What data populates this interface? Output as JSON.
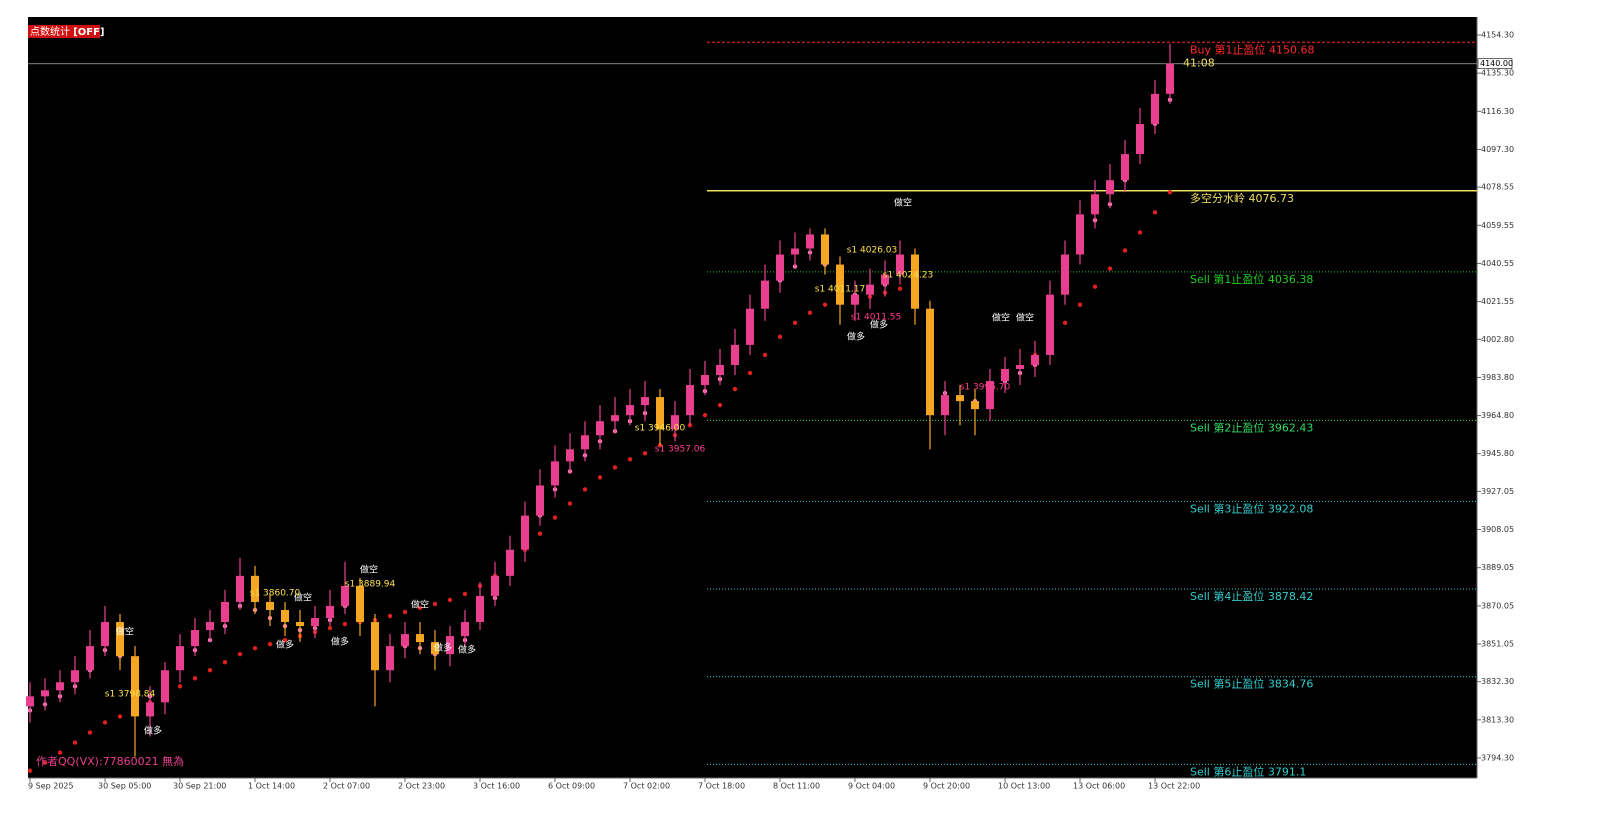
{
  "chart_data": {
    "type": "candlestick",
    "status_label": "点数统计",
    "status_state": "[OFF]",
    "author_note": "作者QQ(VX):77860021 無為",
    "up_color": "#e8408f",
    "down_color": "#f5a623",
    "categories": [
      "9 Sep 2025",
      null,
      null,
      null,
      null,
      "30 Sep 05:00",
      null,
      null,
      null,
      null,
      "30 Sep 21:00",
      null,
      null,
      null,
      null,
      "1 Oct 14:00",
      null,
      null,
      null,
      null,
      "2 Oct 07:00",
      null,
      null,
      null,
      null,
      "2 Oct 23:00",
      null,
      null,
      null,
      null,
      "3 Oct 16:00",
      null,
      null,
      null,
      null,
      "6 Oct 09:00",
      null,
      null,
      null,
      null,
      "7 Oct 02:00",
      null,
      null,
      null,
      null,
      "7 Oct 18:00",
      null,
      null,
      null,
      null,
      "8 Oct 11:00",
      null,
      null,
      null,
      null,
      "9 Oct 04:00",
      null,
      null,
      null,
      null,
      "9 Oct 20:00",
      null,
      null,
      null,
      null,
      "10 Oct 13:00",
      null,
      null,
      null,
      null,
      "13 Oct 06:00",
      null,
      null,
      null,
      null,
      "13 Oct 22:00",
      null
    ],
    "ohlc": [
      [
        3820,
        3832,
        3812,
        3825
      ],
      [
        3825,
        3834,
        3818,
        3828
      ],
      [
        3828,
        3838,
        3822,
        3832
      ],
      [
        3832,
        3845,
        3826,
        3838
      ],
      [
        3838,
        3858,
        3834,
        3850
      ],
      [
        3850,
        3870,
        3845,
        3862
      ],
      [
        3862,
        3866,
        3838,
        3845
      ],
      [
        3845,
        3850,
        3795,
        3815
      ],
      [
        3815,
        3830,
        3805,
        3822
      ],
      [
        3822,
        3842,
        3816,
        3838
      ],
      [
        3838,
        3856,
        3832,
        3850
      ],
      [
        3850,
        3864,
        3845,
        3858
      ],
      [
        3858,
        3868,
        3852,
        3862
      ],
      [
        3862,
        3878,
        3856,
        3872
      ],
      [
        3872,
        3894,
        3868,
        3885
      ],
      [
        3885,
        3890,
        3866,
        3872
      ],
      [
        3872,
        3876,
        3860,
        3868
      ],
      [
        3868,
        3872,
        3855,
        3862
      ],
      [
        3862,
        3868,
        3852,
        3860
      ],
      [
        3860,
        3870,
        3854,
        3864
      ],
      [
        3864,
        3878,
        3860,
        3870
      ],
      [
        3870,
        3892,
        3866,
        3880
      ],
      [
        3880,
        3884,
        3855,
        3862
      ],
      [
        3862,
        3866,
        3820,
        3838
      ],
      [
        3838,
        3856,
        3832,
        3850
      ],
      [
        3850,
        3862,
        3844,
        3856
      ],
      [
        3856,
        3862,
        3846,
        3852
      ],
      [
        3852,
        3858,
        3838,
        3846
      ],
      [
        3846,
        3860,
        3840,
        3855
      ],
      [
        3855,
        3868,
        3850,
        3862
      ],
      [
        3862,
        3882,
        3858,
        3875
      ],
      [
        3875,
        3892,
        3870,
        3885
      ],
      [
        3885,
        3905,
        3880,
        3898
      ],
      [
        3898,
        3922,
        3892,
        3915
      ],
      [
        3915,
        3938,
        3910,
        3930
      ],
      [
        3930,
        3950,
        3924,
        3942
      ],
      [
        3942,
        3956,
        3936,
        3948
      ],
      [
        3948,
        3962,
        3942,
        3955
      ],
      [
        3955,
        3970,
        3948,
        3962
      ],
      [
        3962,
        3974,
        3956,
        3965
      ],
      [
        3965,
        3978,
        3960,
        3970
      ],
      [
        3970,
        3982,
        3962,
        3974
      ],
      [
        3974,
        3978,
        3950,
        3958
      ],
      [
        3958,
        3972,
        3952,
        3965
      ],
      [
        3965,
        3988,
        3960,
        3980
      ],
      [
        3980,
        3992,
        3975,
        3985
      ],
      [
        3985,
        3998,
        3980,
        3990
      ],
      [
        3990,
        4008,
        3985,
        4000
      ],
      [
        4000,
        4025,
        3995,
        4018
      ],
      [
        4018,
        4040,
        4012,
        4032
      ],
      [
        4032,
        4052,
        4026,
        4045
      ],
      [
        4045,
        4056,
        4038,
        4048
      ],
      [
        4048,
        4058,
        4042,
        4055
      ],
      [
        4055,
        4058,
        4035,
        4040
      ],
      [
        4040,
        4044,
        4010,
        4020
      ],
      [
        4020,
        4032,
        4012,
        4025
      ],
      [
        4025,
        4038,
        4018,
        4030
      ],
      [
        4030,
        4042,
        4024,
        4035
      ],
      [
        4035,
        4052,
        4030,
        4045
      ],
      [
        4045,
        4048,
        4010,
        4018
      ],
      [
        4018,
        4022,
        3948,
        3965
      ],
      [
        3965,
        3982,
        3955,
        3975
      ],
      [
        3975,
        3980,
        3960,
        3972
      ],
      [
        3972,
        3978,
        3955,
        3968
      ],
      [
        3968,
        3988,
        3962,
        3982
      ],
      [
        3982,
        3994,
        3976,
        3988
      ],
      [
        3988,
        3998,
        3980,
        3990
      ],
      [
        3990,
        4002,
        3984,
        3995
      ],
      [
        3995,
        4032,
        3990,
        4025
      ],
      [
        4025,
        4052,
        4020,
        4045
      ],
      [
        4045,
        4072,
        4040,
        4065
      ],
      [
        4065,
        4082,
        4058,
        4075
      ],
      [
        4075,
        4090,
        4068,
        4082
      ],
      [
        4082,
        4102,
        4076,
        4095
      ],
      [
        4095,
        4118,
        4090,
        4110
      ],
      [
        4110,
        4132,
        4105,
        4125
      ],
      [
        4125,
        4150,
        4120,
        4140
      ]
    ],
    "dot_lines": [
      {
        "color": "#ff7fb8",
        "values": [
          3818,
          3821,
          3825,
          3830,
          3838,
          3848,
          3845,
          3830,
          3825,
          3830,
          3840,
          3848,
          3853,
          3860,
          3870,
          3868,
          3864,
          3860,
          3858,
          3859,
          3863,
          3870,
          3865,
          3850,
          3848,
          3850,
          3849,
          3846,
          3848,
          3853,
          3863,
          3874,
          3886,
          3900,
          3915,
          3928,
          3937,
          3945,
          3952,
          3957,
          3962,
          3966,
          3960,
          3960,
          3970,
          3977,
          3983,
          3991,
          4005,
          4020,
          4032,
          4039,
          4046,
          4040,
          4028,
          4025,
          4027,
          4030,
          4036,
          4020,
          3985,
          3976,
          3974,
          3972,
          3976,
          3982,
          3986,
          3990,
          4010,
          4030,
          4050,
          4062,
          4070,
          4082,
          4096,
          4110,
          4122
        ]
      },
      {
        "color": "#e0201c",
        "values": [
          3788,
          3792,
          3797,
          3802,
          3807,
          3812,
          3815,
          3818,
          3822,
          3826,
          3830,
          3834,
          3838,
          3842,
          3846,
          3849,
          3851,
          3853,
          3855,
          3857,
          3859,
          3861,
          3862,
          3863,
          3865,
          3867,
          3869,
          3871,
          3873,
          3876,
          3880,
          3885,
          3891,
          3898,
          3906,
          3914,
          3921,
          3928,
          3934,
          3939,
          3943,
          3946,
          3950,
          3955,
          3960,
          3965,
          3970,
          3978,
          3986,
          3995,
          4004,
          4011,
          4016,
          4020,
          4022,
          4023,
          4024,
          4026,
          4028,
          4029,
          null,
          null,
          null,
          null,
          null,
          null,
          null,
          3995,
          4003,
          4011,
          4020,
          4029,
          4038,
          4047,
          4056,
          4066,
          4076
        ]
      }
    ],
    "ylim": [
      3784.34,
      4163.26
    ],
    "yticks": [
      {
        "value": 4154.3,
        "label": "4154.30"
      },
      {
        "value": 4135.3,
        "label": "4135.30"
      },
      {
        "value": 4116.3,
        "label": "4116.30"
      },
      {
        "value": 4097.3,
        "label": "4097.30"
      },
      {
        "value": 4078.55,
        "label": "4078.55"
      },
      {
        "value": 4059.55,
        "label": "4059.55"
      },
      {
        "value": 4040.55,
        "label": "4040.55"
      },
      {
        "value": 4021.55,
        "label": "4021.55"
      },
      {
        "value": 4002.8,
        "label": "4002.80"
      },
      {
        "value": 3983.8,
        "label": "3983.80"
      },
      {
        "value": 3964.8,
        "label": "3964.80"
      },
      {
        "value": 3945.8,
        "label": "3945.80"
      },
      {
        "value": 3927.05,
        "label": "3927.05"
      },
      {
        "value": 3908.05,
        "label": "3908.05"
      },
      {
        "value": 3889.05,
        "label": "3889.05"
      },
      {
        "value": 3870.05,
        "label": "3870.05"
      },
      {
        "value": 3851.05,
        "label": "3851.05"
      },
      {
        "value": 3832.3,
        "label": "3832.30"
      },
      {
        "value": 3813.3,
        "label": "3813.30"
      },
      {
        "value": 3794.3,
        "label": "3794.30"
      }
    ],
    "price_line": {
      "value": 4140,
      "label": "4140.00",
      "countdown": "41:08"
    },
    "levels": [
      {
        "name": "Buy 第1止盈位",
        "value": 4150.68,
        "color": "#ff2a2a",
        "dash": "dashed"
      },
      {
        "name": "多空分水岭",
        "value": 4076.73,
        "color": "#f0e060",
        "dash": "solid"
      },
      {
        "name": "Sell 第1止盈位",
        "value": 4036.38,
        "color": "#22cc22",
        "dash": "dotted"
      },
      {
        "name": "Sell 第2止盈位",
        "value": 3962.43,
        "color": "#33dd66",
        "dash": "dotted"
      },
      {
        "name": "Sell 第3止盈位",
        "value": 3922.08,
        "color": "#33cccc",
        "dash": "dotted"
      },
      {
        "name": "Sell 第4止盈位",
        "value": 3878.42,
        "color": "#33cccc",
        "dash": "dotted"
      },
      {
        "name": "Sell 第5止盈位",
        "value": 3834.76,
        "color": "#33cccc",
        "dash": "dotted"
      },
      {
        "name": "Sell 第6止盈位",
        "value": 3791.1,
        "color": "#33cccc",
        "dash": "dotted"
      }
    ],
    "annotations": [
      {
        "text": "做空",
        "color": "#ffffff"
      },
      {
        "text": "做空",
        "color": "#ffffff"
      },
      {
        "text": "做空",
        "color": "#ffffff"
      },
      {
        "text": "做空",
        "color": "#ffffff"
      },
      {
        "text": "做空",
        "color": "#ffffff"
      },
      {
        "text": "做空",
        "color": "#ffffff"
      },
      {
        "text": "做空",
        "color": "#ffffff"
      },
      {
        "text": "做多",
        "color": "#ffffff"
      },
      {
        "text": "做多",
        "color": "#ffffff"
      },
      {
        "text": "做多",
        "color": "#ffffff"
      },
      {
        "text": "做多",
        "color": "#ffffff"
      },
      {
        "text": "做多",
        "color": "#ffffff"
      },
      {
        "text": "做多",
        "color": "#ffffff"
      },
      {
        "text": "做多",
        "color": "#ffffff"
      },
      {
        "text": "s1 3798.84",
        "color": "#ffe04a"
      },
      {
        "text": "s1 3860.70",
        "color": "#ffe04a"
      },
      {
        "text": "s1 3889.94",
        "color": "#ffe04a"
      },
      {
        "text": "s1 3946.00",
        "color": "#ffe04a"
      },
      {
        "text": "s1 4026.03",
        "color": "#ffe04a"
      },
      {
        "text": "s1 4024.23",
        "color": "#ffe04a"
      },
      {
        "text": "s1 4011.17",
        "color": "#ffe04a"
      },
      {
        "text": "s1 3957.06",
        "color": "#ff3c8c"
      },
      {
        "text": "s1 4011.55",
        "color": "#ff3c8c"
      },
      {
        "text": "s1 3995.70",
        "color": "#ff3c8c"
      }
    ]
  }
}
